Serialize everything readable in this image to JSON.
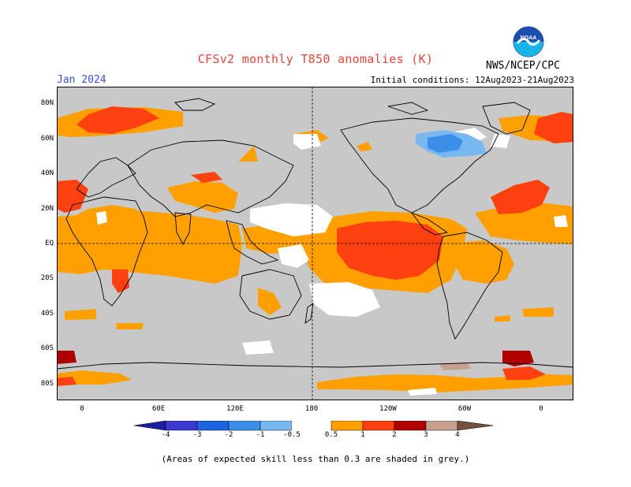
{
  "header": {
    "title": "CFSv2 monthly T850 anomalies (K)",
    "month": "Jan 2024",
    "initial_conditions": "Initial conditions: 12Aug2023-21Aug2023",
    "agency": "NWS/NCEP/CPC",
    "logo_text": "NOAA"
  },
  "map": {
    "lat_labels": [
      "80N",
      "60N",
      "40N",
      "20N",
      "EQ",
      "20S",
      "40S",
      "60S",
      "80S"
    ],
    "lon_labels": [
      "0",
      "60E",
      "120E",
      "180",
      "120W",
      "60W",
      "0"
    ]
  },
  "legend": {
    "labels": [
      "-4",
      "-3",
      "-2",
      "-1",
      "-0.5",
      "0.5",
      "1",
      "2",
      "3",
      "4"
    ],
    "colors": [
      "#1e1ea0",
      "#3a3ad0",
      "#1f63e0",
      "#3c8fe8",
      "#78b8f0",
      "#ffffff",
      "#ffa000",
      "#ff4010",
      "#b00000",
      "#c8a090",
      "#785040"
    ]
  },
  "footnote": "(Areas of expected skill less than 0.3 are shaded in grey.)",
  "colors": {
    "grey_low_skill": "#c8c8c8",
    "title": "#e8453c",
    "month": "#3a4fc8"
  }
}
